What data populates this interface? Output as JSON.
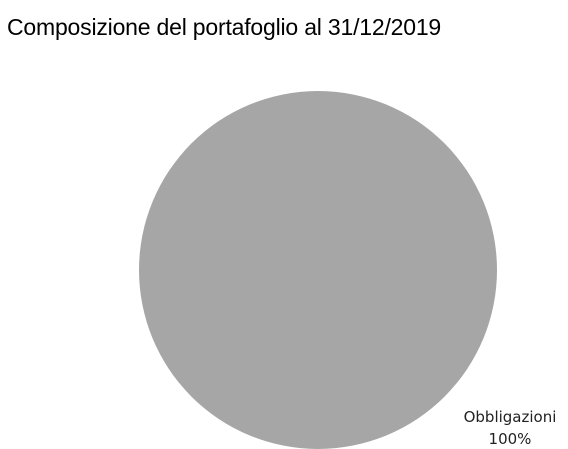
{
  "chart_data": {
    "type": "pie",
    "title": "Composizione del portafoglio al 31/12/2019",
    "slices": [
      {
        "label": "Obbligazioni",
        "value": 100,
        "value_label": "100%",
        "color": "#a6a6a6"
      }
    ],
    "legend": "none"
  }
}
